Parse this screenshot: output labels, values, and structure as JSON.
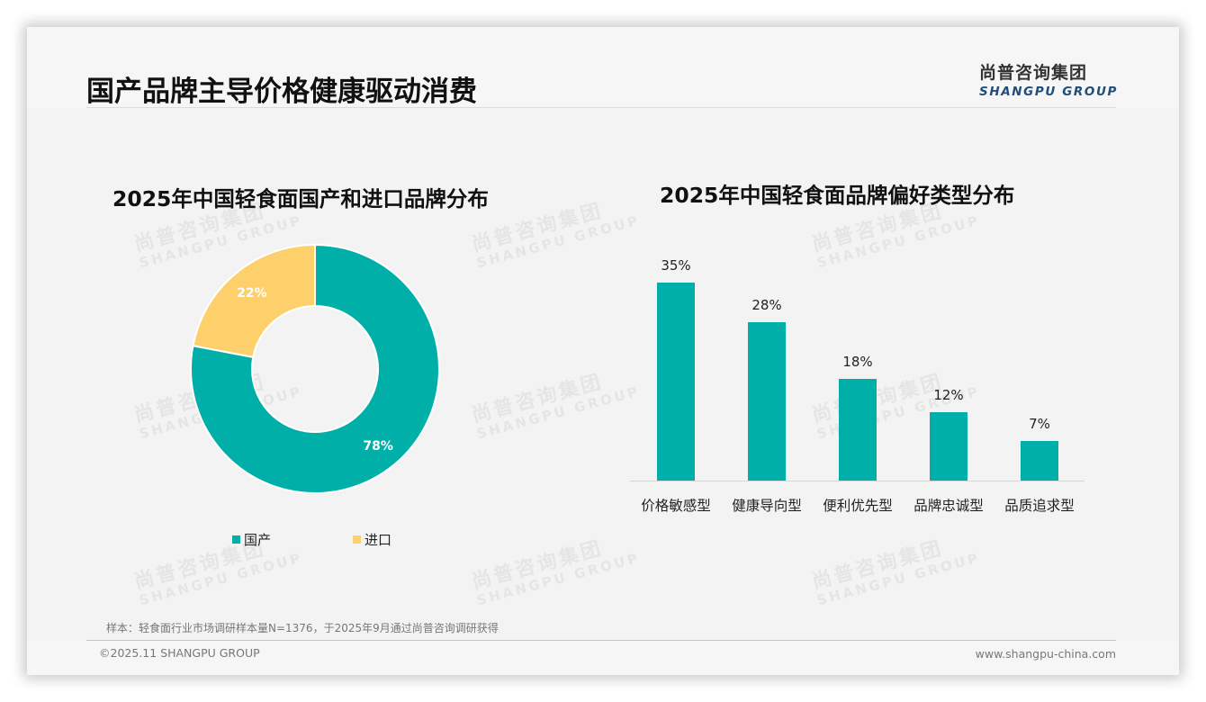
{
  "header": {
    "title": "国产品牌主导价格健康驱动消费",
    "logo_cn": "尚普咨询集团",
    "logo_en": "SHANGPU GROUP"
  },
  "watermark": {
    "cn": "尚普咨询集团",
    "en": "SHANGPU GROUP"
  },
  "colors": {
    "teal": "#00b0a8",
    "yellow": "#fdd06b",
    "brand_blue": "#1e4e79"
  },
  "chart_data": [
    {
      "type": "pie",
      "variant": "donut",
      "title": "2025年中国轻食面国产和进口品牌分布",
      "categories": [
        "国产",
        "进口"
      ],
      "values": [
        78,
        22
      ],
      "labels": [
        "78%",
        "22%"
      ],
      "colors": [
        "#00b0a8",
        "#fdd06b"
      ],
      "legend_position": "bottom"
    },
    {
      "type": "bar",
      "title": "2025年中国轻食面品牌偏好类型分布",
      "categories": [
        "价格敏感型",
        "健康导向型",
        "便利优先型",
        "品牌忠诚型",
        "品质追求型"
      ],
      "values": [
        35,
        28,
        18,
        12,
        7
      ],
      "labels": [
        "35%",
        "28%",
        "18%",
        "12%",
        "7%"
      ],
      "xlabel": "",
      "ylabel": "",
      "unit": "%",
      "grid": false,
      "color": "#00b0a8"
    }
  ],
  "footer": {
    "note": "样本：轻食面行业市场调研样本量N=1376，于2025年9月通过尚普咨询调研获得",
    "copyright": "©2025.11 SHANGPU GROUP",
    "website": "www.shangpu-china.com"
  }
}
